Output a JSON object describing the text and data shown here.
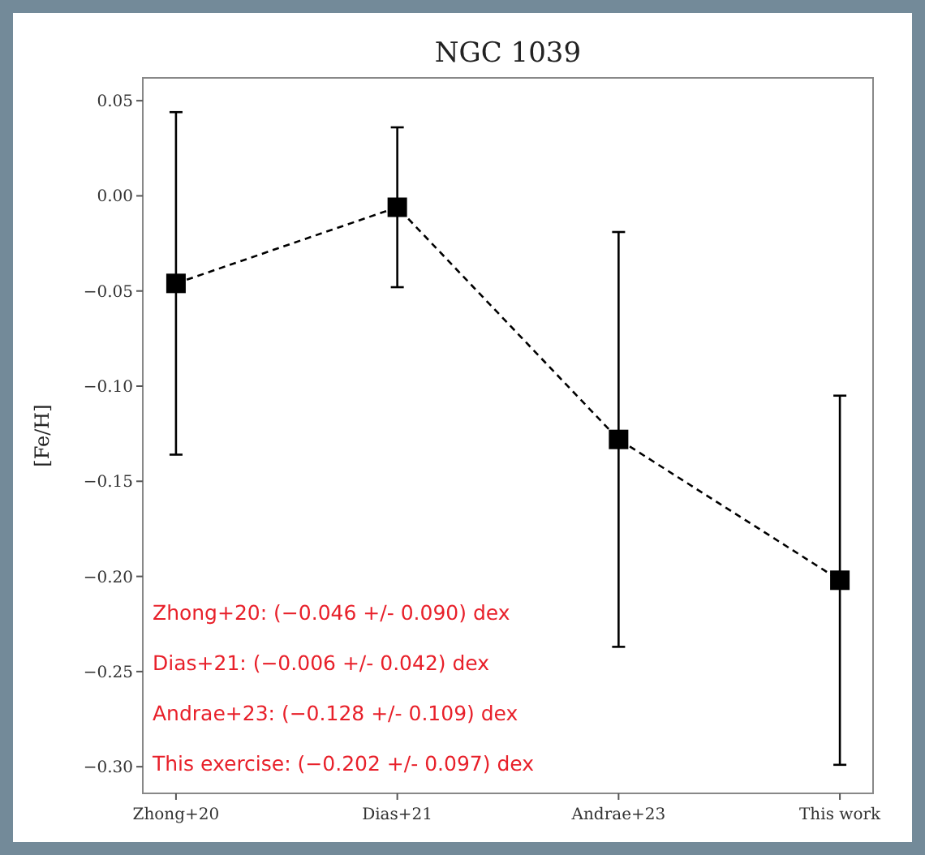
{
  "chart_data": {
    "type": "line",
    "title": "NGC 1039",
    "ylabel": "[Fe/H]",
    "categories": [
      "Zhong+20",
      "Dias+21",
      "Andrae+23",
      "This work"
    ],
    "series": [
      {
        "color": "#000000",
        "values": [
          -0.046,
          -0.006,
          -0.128,
          -0.202
        ],
        "errors": [
          0.09,
          0.042,
          0.109,
          0.097
        ]
      }
    ],
    "ylim": [
      -0.314,
      0.062
    ],
    "yticks": [
      {
        "value": 0.05,
        "label": "0.05"
      },
      {
        "value": 0,
        "label": "0.00"
      },
      {
        "value": -0.05,
        "label": "−0.05"
      },
      {
        "value": -0.1,
        "label": "−0.10"
      },
      {
        "value": -0.15,
        "label": "−0.15"
      },
      {
        "value": -0.2,
        "label": "−0.20"
      },
      {
        "value": -0.25,
        "label": "−0.25"
      },
      {
        "value": -0.3,
        "label": "−0.30"
      }
    ],
    "marker": "square",
    "line_style": "dashed",
    "grid": false,
    "annotations": [
      "Zhong+20: (−0.046 +/- 0.090) dex",
      "Dias+21: (−0.006 +/- 0.042) dex",
      "Andrae+23: (−0.128 +/- 0.109) dex",
      "This exercise: (−0.202 +/- 0.097) dex"
    ]
  }
}
